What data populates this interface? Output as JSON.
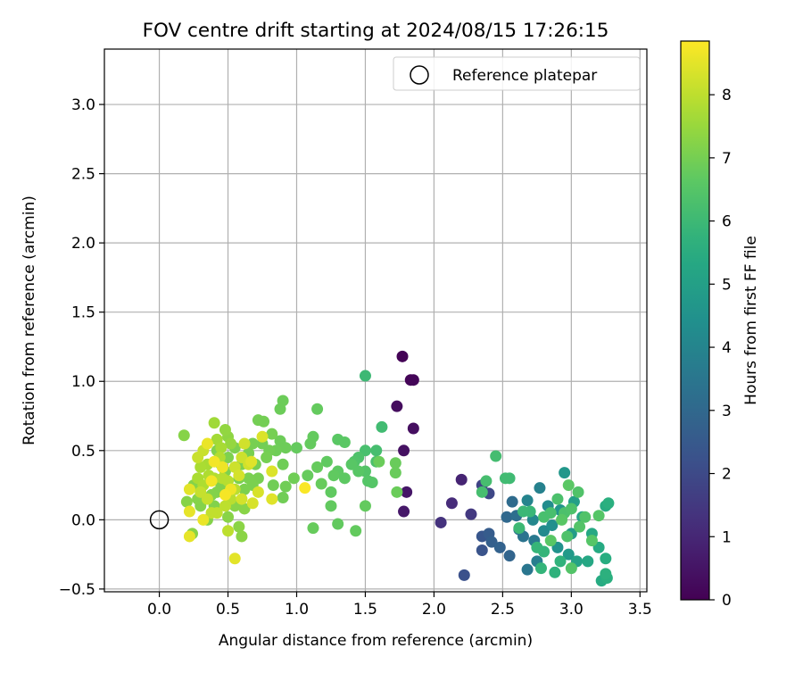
{
  "chart_data": {
    "type": "scatter",
    "title": "FOV centre drift starting at 2024/08/15 17:26:15",
    "xlabel": "Angular distance from reference (arcmin)",
    "ylabel": "Rotation from reference (arcmin)",
    "xlim": [
      -0.4,
      3.55
    ],
    "ylim": [
      -0.52,
      3.4
    ],
    "xticks": [
      0.0,
      0.5,
      1.0,
      1.5,
      2.0,
      2.5,
      3.0,
      3.5
    ],
    "xtick_labels": [
      "0.0",
      "0.5",
      "1.0",
      "1.5",
      "2.0",
      "2.5",
      "3.0",
      "3.5"
    ],
    "yticks": [
      -0.5,
      0.0,
      0.5,
      1.0,
      1.5,
      2.0,
      2.5,
      3.0
    ],
    "ytick_labels": [
      "−0.5",
      "0.0",
      "0.5",
      "1.0",
      "1.5",
      "2.0",
      "2.5",
      "3.0"
    ],
    "grid": true,
    "legend": {
      "placement": "top-right",
      "entries": [
        {
          "label": "Reference platepar",
          "marker": "open-circle"
        }
      ]
    },
    "reference_point": {
      "x": 0.0,
      "y": 0.0
    },
    "colorbar": {
      "label": "Hours from first FF file",
      "colormap": "viridis",
      "range": [
        0,
        8.85
      ],
      "ticks": [
        0,
        1,
        2,
        3,
        4,
        5,
        6,
        7,
        8
      ],
      "tick_labels": [
        "0",
        "1",
        "2",
        "3",
        "4",
        "5",
        "6",
        "7",
        "8"
      ]
    },
    "points": [
      [
        1.77,
        1.18,
        0.05
      ],
      [
        1.83,
        1.01,
        0.08
      ],
      [
        1.85,
        1.01,
        0.12
      ],
      [
        1.73,
        0.82,
        0.3
      ],
      [
        1.85,
        0.66,
        0.35
      ],
      [
        1.78,
        0.5,
        0.4
      ],
      [
        1.8,
        0.2,
        0.55
      ],
      [
        1.78,
        0.06,
        0.6
      ],
      [
        2.2,
        0.29,
        0.9
      ],
      [
        2.13,
        0.12,
        1.1
      ],
      [
        2.05,
        -0.02,
        1.3
      ],
      [
        2.27,
        0.04,
        1.5
      ],
      [
        2.35,
        0.25,
        1.8
      ],
      [
        2.4,
        0.19,
        1.9
      ],
      [
        2.22,
        -0.4,
        2.2
      ],
      [
        2.35,
        -0.22,
        2.3
      ],
      [
        2.35,
        -0.12,
        2.4
      ],
      [
        2.4,
        -0.1,
        2.6
      ],
      [
        2.42,
        -0.16,
        2.7
      ],
      [
        2.48,
        -0.2,
        2.8
      ],
      [
        2.55,
        -0.26,
        2.9
      ],
      [
        2.53,
        0.02,
        3.0
      ],
      [
        2.57,
        0.13,
        3.1
      ],
      [
        2.6,
        0.03,
        3.2
      ],
      [
        2.62,
        -0.07,
        3.3
      ],
      [
        2.65,
        -0.12,
        3.4
      ],
      [
        2.68,
        -0.36,
        3.5
      ],
      [
        2.73,
        -0.15,
        3.6
      ],
      [
        2.75,
        -0.3,
        3.8
      ],
      [
        2.77,
        0.23,
        3.9
      ],
      [
        2.68,
        0.14,
        4.0
      ],
      [
        2.72,
        0.0,
        4.1
      ],
      [
        2.8,
        -0.08,
        4.2
      ],
      [
        2.83,
        0.1,
        4.3
      ],
      [
        2.86,
        -0.04,
        4.4
      ],
      [
        2.9,
        -0.2,
        4.5
      ],
      [
        2.92,
        0.07,
        4.6
      ],
      [
        2.95,
        0.34,
        4.7
      ],
      [
        2.98,
        -0.25,
        4.8
      ],
      [
        3.0,
        -0.1,
        4.9
      ],
      [
        3.02,
        0.13,
        5.0
      ],
      [
        3.04,
        -0.3,
        5.1
      ],
      [
        3.08,
        0.02,
        5.2
      ],
      [
        3.12,
        -0.3,
        5.3
      ],
      [
        3.15,
        -0.1,
        5.35
      ],
      [
        3.2,
        -0.2,
        5.4
      ],
      [
        3.22,
        -0.44,
        5.45
      ],
      [
        3.25,
        0.1,
        5.5
      ],
      [
        3.25,
        -0.28,
        5.55
      ],
      [
        3.27,
        0.12,
        5.6
      ],
      [
        3.26,
        -0.42,
        5.6
      ],
      [
        3.25,
        -0.39,
        5.65
      ],
      [
        2.88,
        -0.38,
        5.7
      ],
      [
        2.92,
        -0.3,
        5.75
      ],
      [
        2.8,
        -0.23,
        5.8
      ],
      [
        2.78,
        -0.35,
        5.8
      ],
      [
        2.75,
        -0.2,
        5.85
      ],
      [
        2.7,
        0.06,
        5.9
      ],
      [
        2.65,
        0.06,
        5.95
      ],
      [
        2.62,
        -0.06,
        6.0
      ],
      [
        2.55,
        0.3,
        6.05
      ],
      [
        2.52,
        0.3,
        6.1
      ],
      [
        2.45,
        0.46,
        6.15
      ],
      [
        2.38,
        0.28,
        6.2
      ],
      [
        2.35,
        0.2,
        6.2
      ],
      [
        2.8,
        0.02,
        6.25
      ],
      [
        2.85,
        0.05,
        6.25
      ],
      [
        2.9,
        0.15,
        6.3
      ],
      [
        2.95,
        0.05,
        6.3
      ],
      [
        2.97,
        -0.12,
        6.35
      ],
      [
        3.0,
        0.08,
        6.35
      ],
      [
        3.05,
        0.2,
        6.4
      ],
      [
        3.1,
        0.02,
        6.4
      ],
      [
        3.0,
        -0.35,
        6.45
      ],
      [
        3.06,
        -0.05,
        6.45
      ],
      [
        3.15,
        -0.15,
        6.5
      ],
      [
        3.2,
        0.03,
        6.5
      ],
      [
        2.93,
        0.0,
        6.55
      ],
      [
        2.85,
        -0.15,
        6.55
      ],
      [
        2.98,
        0.25,
        6.6
      ],
      [
        1.5,
        1.04,
        6.0
      ],
      [
        1.62,
        0.67,
        6.1
      ],
      [
        1.58,
        0.5,
        6.2
      ],
      [
        1.5,
        0.5,
        6.25
      ],
      [
        1.58,
        0.42,
        6.3
      ],
      [
        1.45,
        0.45,
        6.35
      ],
      [
        1.42,
        0.42,
        6.4
      ],
      [
        1.5,
        0.35,
        6.45
      ],
      [
        1.52,
        0.28,
        6.5
      ],
      [
        1.55,
        0.27,
        6.5
      ],
      [
        1.45,
        0.35,
        6.55
      ],
      [
        1.4,
        0.4,
        6.55
      ],
      [
        1.35,
        0.56,
        6.6
      ],
      [
        1.3,
        0.58,
        6.6
      ],
      [
        1.35,
        0.3,
        6.65
      ],
      [
        1.3,
        0.35,
        6.65
      ],
      [
        1.27,
        0.32,
        6.7
      ],
      [
        1.22,
        0.42,
        6.7
      ],
      [
        1.25,
        0.2,
        6.7
      ],
      [
        1.25,
        0.1,
        6.72
      ],
      [
        1.3,
        -0.03,
        6.72
      ],
      [
        1.43,
        -0.08,
        6.74
      ],
      [
        1.5,
        0.1,
        6.74
      ],
      [
        1.15,
        0.8,
        6.75
      ],
      [
        1.12,
        0.6,
        6.75
      ],
      [
        1.1,
        0.55,
        6.76
      ],
      [
        1.0,
        0.52,
        6.76
      ],
      [
        1.08,
        0.32,
        6.78
      ],
      [
        1.15,
        0.38,
        6.78
      ],
      [
        1.18,
        0.26,
        6.8
      ],
      [
        1.12,
        -0.06,
        6.8
      ],
      [
        1.72,
        0.41,
        6.82
      ],
      [
        1.72,
        0.34,
        6.82
      ],
      [
        1.73,
        0.2,
        6.84
      ],
      [
        1.6,
        0.42,
        6.84
      ],
      [
        0.9,
        0.86,
        6.86
      ],
      [
        0.88,
        0.8,
        6.86
      ],
      [
        0.88,
        0.57,
        6.88
      ],
      [
        0.92,
        0.52,
        6.88
      ],
      [
        0.85,
        0.5,
        6.9
      ],
      [
        0.9,
        0.4,
        6.9
      ],
      [
        0.98,
        0.3,
        6.92
      ],
      [
        0.92,
        0.24,
        6.92
      ],
      [
        0.9,
        0.16,
        6.94
      ],
      [
        0.83,
        0.25,
        6.94
      ],
      [
        0.8,
        0.5,
        6.96
      ],
      [
        0.75,
        0.55,
        6.96
      ],
      [
        0.72,
        0.72,
        6.98
      ],
      [
        0.76,
        0.71,
        6.98
      ],
      [
        0.82,
        0.62,
        7.0
      ],
      [
        0.78,
        0.45,
        7.0
      ],
      [
        0.7,
        0.4,
        7.02
      ],
      [
        0.68,
        0.55,
        7.02
      ],
      [
        0.65,
        0.48,
        7.04
      ],
      [
        0.72,
        0.3,
        7.04
      ],
      [
        0.68,
        0.25,
        7.06
      ],
      [
        0.65,
        0.3,
        7.06
      ],
      [
        0.62,
        0.22,
        7.08
      ],
      [
        0.58,
        0.3,
        7.08
      ],
      [
        0.6,
        0.4,
        7.1
      ],
      [
        0.55,
        0.52,
        7.1
      ],
      [
        0.5,
        0.45,
        7.12
      ],
      [
        0.48,
        0.35,
        7.12
      ],
      [
        0.45,
        0.4,
        7.14
      ],
      [
        0.42,
        0.5,
        7.14
      ],
      [
        0.45,
        0.25,
        7.16
      ],
      [
        0.42,
        0.2,
        7.16
      ],
      [
        0.38,
        0.18,
        7.18
      ],
      [
        0.4,
        0.1,
        7.18
      ],
      [
        0.35,
        0.0,
        7.2
      ],
      [
        0.3,
        0.1,
        7.2
      ],
      [
        0.28,
        0.15,
        7.22
      ],
      [
        0.25,
        0.25,
        7.22
      ],
      [
        0.2,
        0.13,
        7.24
      ],
      [
        0.18,
        0.61,
        7.24
      ],
      [
        0.24,
        -0.1,
        7.26
      ],
      [
        0.5,
        0.02,
        7.26
      ],
      [
        0.55,
        0.1,
        7.28
      ],
      [
        0.62,
        0.08,
        7.28
      ],
      [
        0.6,
        -0.12,
        7.3
      ],
      [
        0.58,
        -0.05,
        7.3
      ],
      [
        0.5,
        0.6,
        7.35
      ],
      [
        0.48,
        0.65,
        7.4
      ],
      [
        0.52,
        0.55,
        7.45
      ],
      [
        0.4,
        0.7,
        7.6
      ],
      [
        0.42,
        0.58,
        7.65
      ],
      [
        0.45,
        0.52,
        7.7
      ],
      [
        0.35,
        0.4,
        7.7
      ],
      [
        0.3,
        0.38,
        7.75
      ],
      [
        0.28,
        0.3,
        7.75
      ],
      [
        0.32,
        0.25,
        7.8
      ],
      [
        0.36,
        0.32,
        7.8
      ],
      [
        0.4,
        0.3,
        7.85
      ],
      [
        0.44,
        0.45,
        7.85
      ],
      [
        0.46,
        0.3,
        7.9
      ],
      [
        0.5,
        0.28,
        7.9
      ],
      [
        0.55,
        0.22,
        7.95
      ],
      [
        0.52,
        0.15,
        7.95
      ],
      [
        0.48,
        0.1,
        8.0
      ],
      [
        0.5,
        -0.08,
        8.0
      ],
      [
        0.42,
        0.05,
        8.05
      ],
      [
        0.38,
        0.05,
        8.05
      ],
      [
        0.35,
        0.15,
        8.1
      ],
      [
        0.3,
        0.2,
        8.1
      ],
      [
        0.28,
        0.45,
        8.15
      ],
      [
        0.32,
        0.5,
        8.15
      ],
      [
        0.55,
        0.38,
        8.2
      ],
      [
        0.6,
        0.45,
        8.2
      ],
      [
        0.62,
        0.55,
        8.25
      ],
      [
        0.65,
        0.4,
        8.25
      ],
      [
        0.58,
        0.32,
        8.3
      ],
      [
        0.6,
        0.15,
        8.3
      ],
      [
        0.68,
        0.12,
        8.35
      ],
      [
        0.72,
        0.2,
        8.35
      ],
      [
        0.75,
        0.6,
        8.4
      ],
      [
        0.82,
        0.35,
        8.4
      ],
      [
        0.82,
        0.15,
        8.45
      ],
      [
        0.67,
        0.42,
        8.45
      ],
      [
        0.55,
        -0.28,
        8.5
      ],
      [
        0.22,
        0.22,
        8.5
      ],
      [
        0.22,
        0.06,
        8.55
      ],
      [
        0.22,
        -0.12,
        8.55
      ],
      [
        0.32,
        0.0,
        8.6
      ],
      [
        0.35,
        0.55,
        8.6
      ],
      [
        0.46,
        0.38,
        8.65
      ],
      [
        0.52,
        0.22,
        8.65
      ],
      [
        0.4,
        0.42,
        8.7
      ],
      [
        0.38,
        0.28,
        8.7
      ],
      [
        0.48,
        0.18,
        8.75
      ],
      [
        1.06,
        0.23,
        8.8
      ]
    ]
  }
}
